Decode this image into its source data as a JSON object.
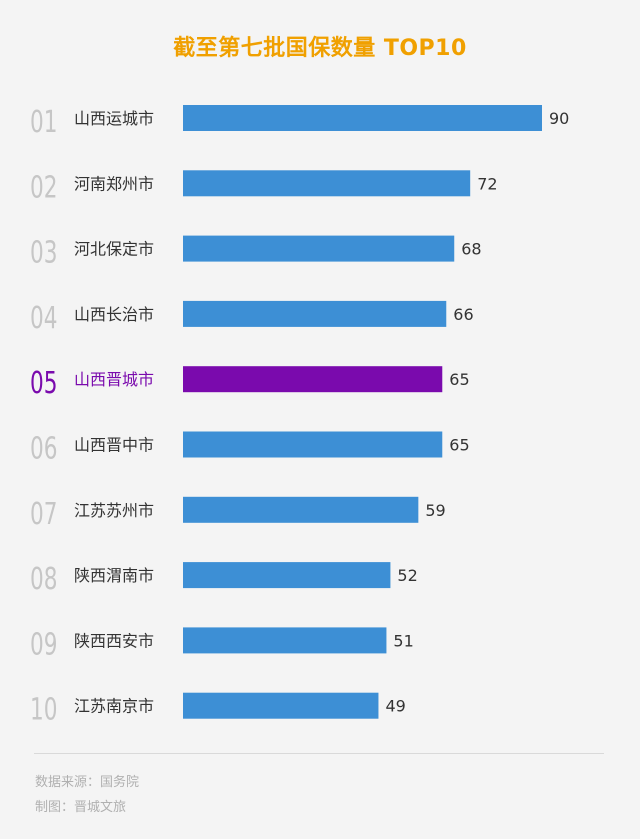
{
  "colors": {
    "title": "#f0a000",
    "bar": "#3d8fd5",
    "highlight": "#7a0aad",
    "rank": "#c6c6c6",
    "label": "#333333",
    "value": "#333333"
  },
  "chart_data": {
    "type": "bar",
    "orientation": "horizontal",
    "title": "截至第七批国保数量 TOP10",
    "ranks": [
      "01",
      "02",
      "03",
      "04",
      "05",
      "06",
      "07",
      "08",
      "09",
      "10"
    ],
    "categories": [
      "山西运城市",
      "河南郑州市",
      "河北保定市",
      "山西长治市",
      "山西晋城市",
      "山西晋中市",
      "江苏苏州市",
      "陕西渭南市",
      "陕西西安市",
      "江苏南京市"
    ],
    "values": [
      90,
      72,
      68,
      66,
      65,
      65,
      59,
      52,
      51,
      49
    ],
    "highlight_index": 4,
    "xlim": [
      0,
      90
    ]
  },
  "footer": {
    "source": "数据来源：国务院",
    "maker": "制图：晋城文旅"
  }
}
